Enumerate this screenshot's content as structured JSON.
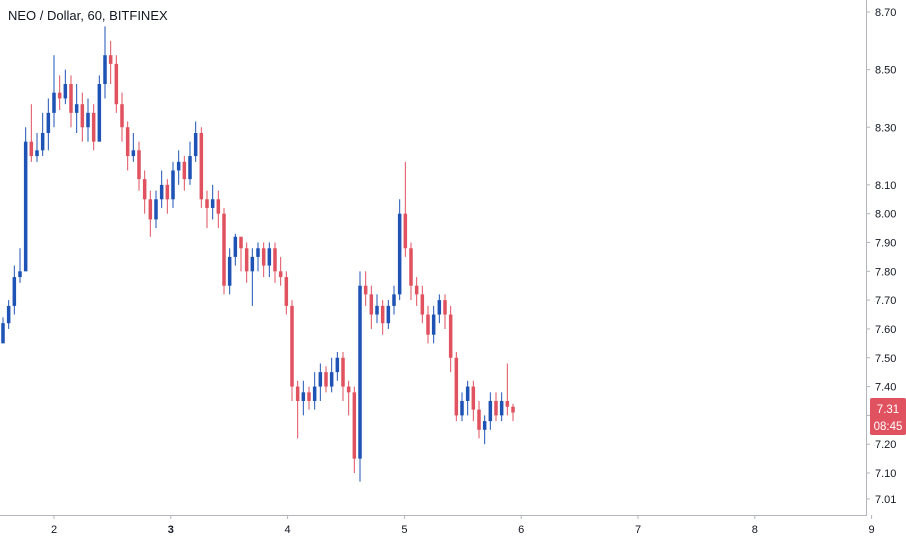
{
  "header": {
    "title": "NEO / Dollar, 60, BITFINEX"
  },
  "price_badge": {
    "price": "7.31",
    "countdown": "08:45"
  },
  "colors": {
    "up": "#1e53b5",
    "down": "#e0525f",
    "axis": "#b2b5be",
    "text": "#131722",
    "badge": "#e0525f"
  },
  "chart_data": {
    "type": "candlestick",
    "title": "NEO / Dollar, 60, BITFINEX",
    "xlabel": "",
    "ylabel": "",
    "ylim": [
      6.98,
      8.74
    ],
    "xlim": [
      1.55,
      8.85
    ],
    "y_ticks": [
      "7.01",
      "7.10",
      "7.20",
      "7.30",
      "7.40",
      "7.50",
      "7.60",
      "7.70",
      "7.80",
      "7.90",
      "8.00",
      "8.10",
      "8.30",
      "8.50",
      "8.70"
    ],
    "x_ticks": [
      {
        "value": 2,
        "label": "2"
      },
      {
        "value": 3,
        "label": "3"
      },
      {
        "value": 4,
        "label": "4"
      },
      {
        "value": 5,
        "label": "5"
      },
      {
        "value": 6,
        "label": "6"
      },
      {
        "value": 7,
        "label": "7"
      },
      {
        "value": 8,
        "label": "8"
      },
      {
        "value": 9,
        "label": "9"
      }
    ],
    "candles": [
      [
        7.55,
        7.62,
        7.64,
        7.55
      ],
      [
        7.62,
        7.68,
        7.7,
        7.6
      ],
      [
        7.68,
        7.78,
        7.82,
        7.65
      ],
      [
        7.78,
        7.8,
        7.88,
        7.76
      ],
      [
        7.8,
        8.25,
        8.3,
        7.8
      ],
      [
        8.25,
        8.2,
        8.38,
        8.18
      ],
      [
        8.2,
        8.22,
        8.28,
        8.18
      ],
      [
        8.22,
        8.28,
        8.35,
        8.2
      ],
      [
        8.28,
        8.35,
        8.4,
        8.22
      ],
      [
        8.35,
        8.42,
        8.55,
        8.3
      ],
      [
        8.42,
        8.4,
        8.48,
        8.36
      ],
      [
        8.4,
        8.45,
        8.5,
        8.38
      ],
      [
        8.45,
        8.35,
        8.48,
        8.3
      ],
      [
        8.35,
        8.38,
        8.45,
        8.28
      ],
      [
        8.38,
        8.3,
        8.42,
        8.25
      ],
      [
        8.3,
        8.35,
        8.4,
        8.25
      ],
      [
        8.35,
        8.25,
        8.38,
        8.22
      ],
      [
        8.25,
        8.45,
        8.48,
        8.25
      ],
      [
        8.45,
        8.55,
        8.65,
        8.4
      ],
      [
        8.55,
        8.52,
        8.6,
        8.45
      ],
      [
        8.52,
        8.38,
        8.55,
        8.35
      ],
      [
        8.38,
        8.3,
        8.42,
        8.25
      ],
      [
        8.3,
        8.2,
        8.32,
        8.15
      ],
      [
        8.2,
        8.22,
        8.28,
        8.18
      ],
      [
        8.22,
        8.12,
        8.25,
        8.08
      ],
      [
        8.12,
        8.05,
        8.15,
        8.0
      ],
      [
        8.05,
        7.98,
        8.08,
        7.92
      ],
      [
        7.98,
        8.05,
        8.08,
        7.95
      ],
      [
        8.05,
        8.1,
        8.15,
        8.02
      ],
      [
        8.1,
        8.05,
        8.12,
        8.0
      ],
      [
        8.05,
        8.15,
        8.18,
        8.02
      ],
      [
        8.15,
        8.18,
        8.22,
        8.1
      ],
      [
        8.18,
        8.12,
        8.2,
        8.08
      ],
      [
        8.12,
        8.2,
        8.25,
        8.1
      ],
      [
        8.2,
        8.28,
        8.32,
        8.18
      ],
      [
        8.28,
        8.05,
        8.3,
        8.02
      ],
      [
        8.05,
        8.02,
        8.08,
        7.95
      ],
      [
        8.02,
        8.05,
        8.1,
        7.98
      ],
      [
        8.05,
        8.0,
        8.08,
        7.95
      ],
      [
        8.0,
        7.75,
        8.02,
        7.72
      ],
      [
        7.75,
        7.85,
        7.88,
        7.72
      ],
      [
        7.85,
        7.92,
        7.93,
        7.82
      ],
      [
        7.92,
        7.88,
        7.92,
        7.8
      ],
      [
        7.88,
        7.8,
        7.9,
        7.76
      ],
      [
        7.8,
        7.85,
        7.88,
        7.68
      ],
      [
        7.85,
        7.88,
        7.9,
        7.8
      ],
      [
        7.88,
        7.82,
        7.9,
        7.78
      ],
      [
        7.82,
        7.88,
        7.9,
        7.78
      ],
      [
        7.88,
        7.8,
        7.9,
        7.76
      ],
      [
        7.8,
        7.78,
        7.85,
        7.75
      ],
      [
        7.78,
        7.68,
        7.8,
        7.65
      ],
      [
        7.68,
        7.4,
        7.7,
        7.35
      ],
      [
        7.4,
        7.35,
        7.42,
        7.22
      ],
      [
        7.35,
        7.38,
        7.42,
        7.3
      ],
      [
        7.38,
        7.35,
        7.4,
        7.32
      ],
      [
        7.35,
        7.4,
        7.45,
        7.32
      ],
      [
        7.4,
        7.45,
        7.48,
        7.35
      ],
      [
        7.45,
        7.4,
        7.47,
        7.38
      ],
      [
        7.4,
        7.45,
        7.5,
        7.38
      ],
      [
        7.45,
        7.5,
        7.52,
        7.42
      ],
      [
        7.5,
        7.4,
        7.52,
        7.35
      ],
      [
        7.4,
        7.38,
        7.42,
        7.3
      ],
      [
        7.38,
        7.15,
        7.4,
        7.1
      ],
      [
        7.15,
        7.75,
        7.8,
        7.07
      ],
      [
        7.75,
        7.72,
        7.8,
        7.68
      ],
      [
        7.72,
        7.65,
        7.75,
        7.6
      ],
      [
        7.65,
        7.68,
        7.72,
        7.62
      ],
      [
        7.68,
        7.62,
        7.7,
        7.58
      ],
      [
        7.62,
        7.68,
        7.7,
        7.6
      ],
      [
        7.68,
        7.72,
        7.75,
        7.65
      ],
      [
        7.72,
        8.0,
        8.05,
        7.7
      ],
      [
        8.0,
        7.88,
        8.18,
        7.85
      ],
      [
        7.88,
        7.75,
        7.9,
        7.7
      ],
      [
        7.75,
        7.72,
        7.78,
        7.68
      ],
      [
        7.72,
        7.65,
        7.75,
        7.62
      ],
      [
        7.65,
        7.58,
        7.68,
        7.55
      ],
      [
        7.58,
        7.65,
        7.68,
        7.55
      ],
      [
        7.65,
        7.7,
        7.72,
        7.62
      ],
      [
        7.7,
        7.65,
        7.72,
        7.6
      ],
      [
        7.65,
        7.5,
        7.68,
        7.45
      ],
      [
        7.5,
        7.3,
        7.52,
        7.28
      ],
      [
        7.3,
        7.35,
        7.38,
        7.28
      ],
      [
        7.35,
        7.4,
        7.42,
        7.3
      ],
      [
        7.4,
        7.32,
        7.42,
        7.28
      ],
      [
        7.32,
        7.25,
        7.35,
        7.22
      ],
      [
        7.25,
        7.28,
        7.3,
        7.2
      ],
      [
        7.28,
        7.35,
        7.38,
        7.25
      ],
      [
        7.35,
        7.3,
        7.38,
        7.28
      ],
      [
        7.3,
        7.35,
        7.38,
        7.28
      ],
      [
        7.35,
        7.33,
        7.48,
        7.3
      ],
      [
        7.33,
        7.31,
        7.34,
        7.28
      ]
    ]
  }
}
